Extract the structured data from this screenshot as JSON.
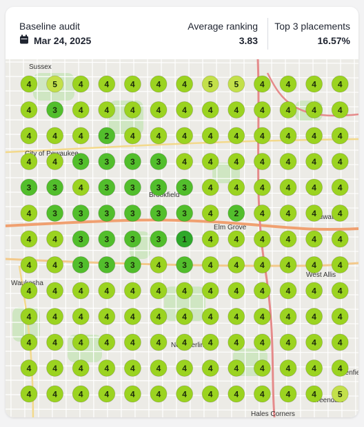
{
  "header": {
    "audit_label": "Baseline audit",
    "date": "Mar 24, 2025",
    "average_ranking_label": "Average ranking",
    "average_ranking": 3.83,
    "top3_label": "Top 3 placements",
    "top3": "16.57%"
  },
  "map": {
    "places": [
      "Sussex",
      "City of Pewaukee",
      "Brookfield",
      "Elm Grove",
      "Wauwatosa",
      "Waukesha",
      "West Allis",
      "New Berlin",
      "Greenfield",
      "Greendale",
      "Hales Corners"
    ],
    "grid": [
      [
        4,
        5,
        4,
        4,
        4,
        4,
        4,
        5,
        5,
        4,
        4,
        4,
        4
      ],
      [
        4,
        3,
        4,
        4,
        4,
        4,
        4,
        4,
        4,
        4,
        4,
        4,
        4
      ],
      [
        4,
        4,
        4,
        2,
        4,
        4,
        4,
        4,
        4,
        4,
        4,
        4,
        4
      ],
      [
        4,
        4,
        3,
        3,
        3,
        3,
        4,
        4,
        4,
        4,
        4,
        4,
        4
      ],
      [
        3,
        3,
        4,
        3,
        3,
        3,
        3,
        4,
        4,
        4,
        4,
        4,
        4
      ],
      [
        4,
        3,
        3,
        3,
        3,
        3,
        3,
        4,
        2,
        4,
        4,
        4,
        4
      ],
      [
        4,
        4,
        3,
        3,
        3,
        3,
        1,
        4,
        4,
        4,
        4,
        4,
        4
      ],
      [
        4,
        4,
        3,
        3,
        3,
        4,
        3,
        4,
        4,
        4,
        4,
        4,
        4
      ],
      [
        4,
        4,
        4,
        4,
        4,
        4,
        4,
        4,
        4,
        4,
        4,
        4,
        4
      ],
      [
        4,
        4,
        4,
        4,
        4,
        4,
        4,
        4,
        4,
        4,
        4,
        4,
        4
      ],
      [
        4,
        4,
        4,
        4,
        4,
        4,
        4,
        4,
        4,
        4,
        4,
        4,
        4
      ],
      [
        4,
        4,
        4,
        4,
        4,
        4,
        4,
        4,
        4,
        4,
        4,
        4,
        4
      ],
      [
        4,
        4,
        4,
        4,
        4,
        4,
        4,
        4,
        4,
        4,
        4,
        4,
        5
      ]
    ]
  }
}
